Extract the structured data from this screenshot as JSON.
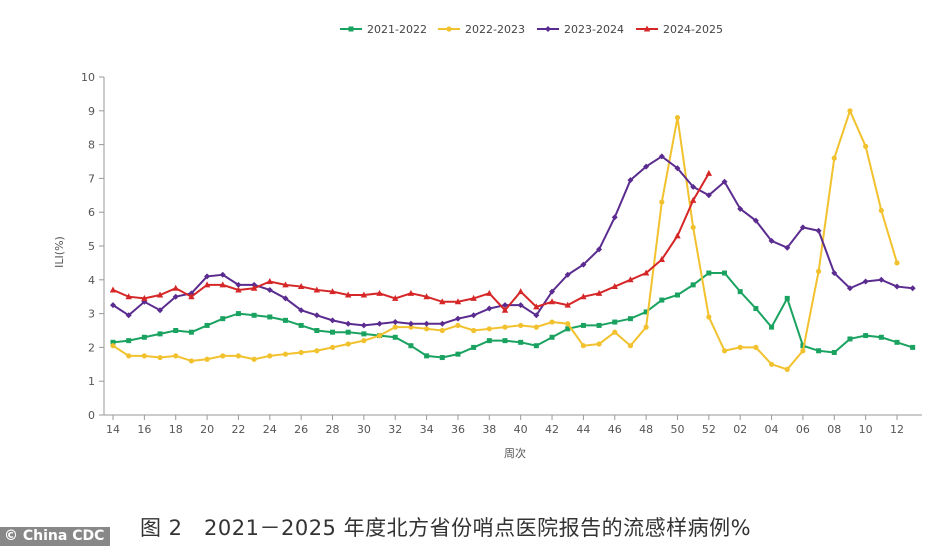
{
  "chart_data": {
    "type": "line",
    "title": "",
    "xlabel": "周次",
    "ylabel": "ILI(%)",
    "ylim": [
      0,
      10
    ],
    "yticks": [
      "0",
      "1",
      "2",
      "3",
      "4",
      "5",
      "6",
      "7",
      "8",
      "9",
      "10"
    ],
    "grid": false,
    "legend_position": "top-center",
    "x": [
      "14",
      "15",
      "16",
      "17",
      "18",
      "19",
      "20",
      "21",
      "22",
      "23",
      "24",
      "25",
      "26",
      "27",
      "28",
      "29",
      "30",
      "31",
      "32",
      "33",
      "34",
      "35",
      "36",
      "37",
      "38",
      "39",
      "40",
      "41",
      "42",
      "43",
      "44",
      "45",
      "46",
      "47",
      "48",
      "49",
      "50",
      "51",
      "52",
      "01",
      "02",
      "03",
      "04",
      "05",
      "06",
      "07",
      "08",
      "09",
      "10",
      "11",
      "12",
      "13"
    ],
    "xticks": [
      "14",
      "16",
      "18",
      "20",
      "22",
      "24",
      "26",
      "28",
      "30",
      "32",
      "34",
      "36",
      "38",
      "40",
      "42",
      "44",
      "46",
      "48",
      "50",
      "52",
      "02",
      "04",
      "06",
      "08",
      "10",
      "12"
    ],
    "series": [
      {
        "name": "2021-2022",
        "color": "#1aa260",
        "marker": "square",
        "values": [
          2.15,
          2.2,
          2.3,
          2.4,
          2.5,
          2.45,
          2.65,
          2.85,
          3.0,
          2.95,
          2.9,
          2.8,
          2.65,
          2.5,
          2.45,
          2.45,
          2.4,
          2.35,
          2.3,
          2.05,
          1.75,
          1.7,
          1.8,
          2.0,
          2.2,
          2.2,
          2.15,
          2.05,
          2.3,
          2.55,
          2.65,
          2.65,
          2.75,
          2.85,
          3.05,
          3.4,
          3.55,
          3.85,
          4.2,
          4.2,
          3.65,
          3.15,
          2.6,
          3.45,
          2.05,
          1.9,
          1.85,
          2.25,
          2.35,
          2.3,
          2.15,
          2.0
        ]
      },
      {
        "name": "2022-2023",
        "color": "#f2c12e",
        "marker": "circle",
        "values": [
          2.05,
          1.75,
          1.75,
          1.7,
          1.75,
          1.6,
          1.65,
          1.75,
          1.75,
          1.65,
          1.75,
          1.8,
          1.85,
          1.9,
          2.0,
          2.1,
          2.2,
          2.35,
          2.6,
          2.6,
          2.55,
          2.5,
          2.65,
          2.5,
          2.55,
          2.6,
          2.65,
          2.6,
          2.75,
          2.7,
          2.05,
          2.1,
          2.45,
          2.05,
          2.6,
          6.3,
          8.8,
          5.55,
          2.9,
          1.9,
          2.0,
          2.0,
          1.5,
          1.35,
          1.9,
          4.25,
          7.6,
          9.0,
          7.95,
          6.05,
          4.5,
          null
        ]
      },
      {
        "name": "2023-2024",
        "color": "#5b2c8f",
        "marker": "diamond",
        "values": [
          3.25,
          2.95,
          3.35,
          3.1,
          3.5,
          3.6,
          4.1,
          4.15,
          3.85,
          3.85,
          3.7,
          3.45,
          3.1,
          2.95,
          2.8,
          2.7,
          2.65,
          2.7,
          2.75,
          2.7,
          2.7,
          2.7,
          2.85,
          2.95,
          3.15,
          3.25,
          3.25,
          2.95,
          3.65,
          4.15,
          4.45,
          4.9,
          5.85,
          6.95,
          7.35,
          7.65,
          7.3,
          6.75,
          6.5,
          6.9,
          6.1,
          5.75,
          5.15,
          4.95,
          5.55,
          5.45,
          4.2,
          3.75,
          3.95,
          4.0,
          3.8,
          3.75
        ]
      },
      {
        "name": "2024-2025",
        "color": "#d62728",
        "marker": "triangle",
        "values": [
          3.7,
          3.5,
          3.45,
          3.55,
          3.75,
          3.5,
          3.85,
          3.85,
          3.7,
          3.75,
          3.95,
          3.85,
          3.8,
          3.7,
          3.65,
          3.55,
          3.55,
          3.6,
          3.45,
          3.6,
          3.5,
          3.35,
          3.35,
          3.45,
          3.6,
          3.1,
          3.65,
          3.2,
          3.35,
          3.25,
          3.5,
          3.6,
          3.8,
          4.0,
          4.2,
          4.6,
          5.3,
          6.35,
          7.15,
          null,
          null,
          null,
          null,
          null,
          null,
          null,
          null,
          null,
          null,
          null,
          null,
          null
        ]
      }
    ]
  },
  "caption": "图 2　2021－2025 年度北方省份哨点医院报告的流感样病例%",
  "watermark": "© China CDC"
}
